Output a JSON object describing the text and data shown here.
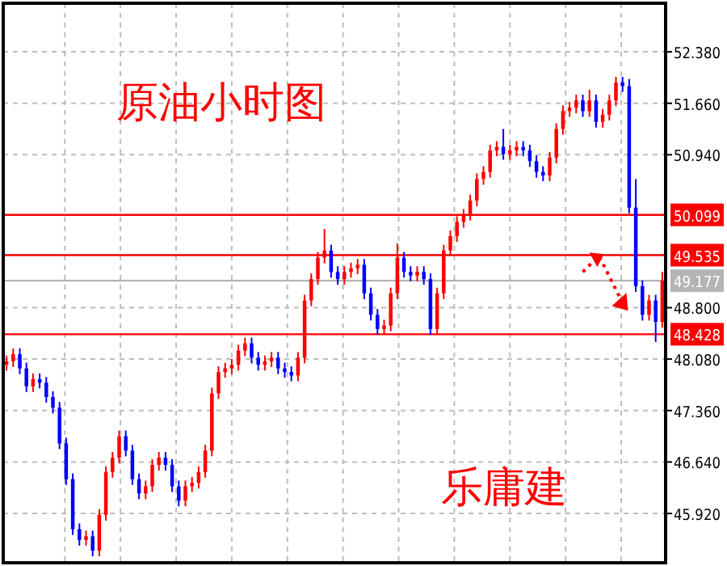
{
  "chart_data": {
    "type": "candlestick",
    "title": "原油小时图",
    "annotations": [
      "乐庸建"
    ],
    "categories": [
      null,
      null,
      null,
      null,
      null,
      null,
      null,
      null,
      null,
      null,
      null,
      null,
      null,
      null,
      null,
      null,
      null,
      null,
      null,
      null,
      null,
      null,
      null,
      null,
      null,
      null,
      null,
      null,
      null,
      null,
      null,
      null,
      null,
      null,
      null,
      null,
      null,
      null,
      null,
      null,
      null,
      null,
      null,
      null,
      null,
      null,
      null,
      null,
      null,
      null,
      null,
      null,
      null,
      null,
      null,
      null,
      null,
      null,
      null,
      null,
      null,
      null,
      null,
      null,
      null,
      null,
      null,
      null,
      null,
      null,
      null,
      null,
      null,
      null,
      null,
      null,
      null,
      null,
      null,
      null,
      null,
      null,
      null,
      null,
      null,
      null,
      null,
      null,
      null,
      null,
      null,
      null,
      null,
      null,
      null,
      null,
      null,
      null,
      null,
      null
    ],
    "ohlc": [
      [
        48.0,
        48.13,
        47.92,
        48.05
      ],
      [
        48.05,
        48.23,
        47.97,
        48.15
      ],
      [
        48.15,
        48.23,
        47.87,
        47.95
      ],
      [
        47.95,
        48.03,
        47.62,
        47.7
      ],
      [
        47.7,
        47.88,
        47.62,
        47.8
      ],
      [
        47.8,
        47.88,
        47.67,
        47.75
      ],
      [
        47.75,
        47.83,
        47.47,
        47.55
      ],
      [
        47.55,
        47.63,
        47.32,
        47.4
      ],
      [
        47.4,
        47.48,
        46.82,
        46.9
      ],
      [
        46.9,
        46.98,
        46.32,
        46.4
      ],
      [
        46.4,
        46.48,
        45.62,
        45.7
      ],
      [
        45.7,
        45.78,
        45.47,
        45.55
      ],
      [
        45.55,
        45.68,
        45.47,
        45.6
      ],
      [
        45.6,
        45.68,
        45.32,
        45.4
      ],
      [
        45.4,
        45.98,
        45.32,
        45.9
      ],
      [
        45.9,
        46.58,
        45.82,
        46.5
      ],
      [
        46.5,
        46.78,
        46.42,
        46.7
      ],
      [
        46.7,
        47.08,
        46.62,
        47.0
      ],
      [
        47.0,
        47.08,
        46.72,
        46.8
      ],
      [
        46.8,
        46.88,
        46.32,
        46.4
      ],
      [
        46.4,
        46.48,
        46.12,
        46.2
      ],
      [
        46.2,
        46.38,
        46.12,
        46.3
      ],
      [
        46.3,
        46.68,
        46.22,
        46.6
      ],
      [
        46.6,
        46.78,
        46.52,
        46.7
      ],
      [
        46.7,
        46.78,
        46.52,
        46.6
      ],
      [
        46.6,
        46.68,
        46.22,
        46.3
      ],
      [
        46.3,
        46.38,
        46.02,
        46.1
      ],
      [
        46.1,
        46.38,
        46.02,
        46.3
      ],
      [
        46.3,
        46.43,
        46.22,
        46.35
      ],
      [
        46.35,
        46.58,
        46.27,
        46.5
      ],
      [
        46.5,
        46.88,
        46.42,
        46.8
      ],
      [
        46.8,
        47.68,
        46.72,
        47.6
      ],
      [
        47.6,
        47.98,
        47.52,
        47.9
      ],
      [
        47.9,
        48.03,
        47.82,
        47.95
      ],
      [
        47.95,
        48.08,
        47.87,
        48.0
      ],
      [
        48.0,
        48.28,
        47.92,
        48.2
      ],
      [
        48.2,
        48.38,
        48.12,
        48.3
      ],
      [
        48.3,
        48.38,
        48.02,
        48.1
      ],
      [
        48.1,
        48.18,
        47.92,
        48.0
      ],
      [
        48.0,
        48.13,
        47.92,
        48.05
      ],
      [
        48.05,
        48.18,
        47.97,
        48.1
      ],
      [
        48.1,
        48.18,
        47.87,
        47.95
      ],
      [
        47.95,
        48.03,
        47.82,
        47.9
      ],
      [
        47.9,
        47.98,
        47.77,
        47.85
      ],
      [
        47.85,
        48.18,
        47.77,
        48.1
      ],
      [
        48.1,
        48.98,
        48.02,
        48.9
      ],
      [
        48.9,
        49.28,
        48.82,
        49.2
      ],
      [
        49.2,
        49.58,
        49.12,
        49.5
      ],
      [
        49.5,
        49.9,
        49.42,
        49.6
      ],
      [
        49.6,
        49.68,
        49.22,
        49.3
      ],
      [
        49.3,
        49.38,
        49.12,
        49.2
      ],
      [
        49.2,
        49.38,
        49.12,
        49.3
      ],
      [
        49.3,
        49.43,
        49.22,
        49.35
      ],
      [
        49.35,
        49.48,
        49.27,
        49.4
      ],
      [
        49.4,
        49.48,
        48.92,
        49.0
      ],
      [
        49.0,
        49.08,
        48.62,
        48.7
      ],
      [
        48.7,
        48.78,
        48.42,
        48.5
      ],
      [
        48.5,
        48.63,
        48.42,
        48.55
      ],
      [
        48.55,
        49.08,
        48.47,
        49.0
      ],
      [
        49.0,
        49.7,
        48.92,
        49.5
      ],
      [
        49.5,
        49.58,
        49.22,
        49.3
      ],
      [
        49.3,
        49.38,
        49.17,
        49.25
      ],
      [
        49.25,
        49.38,
        49.17,
        49.3
      ],
      [
        49.3,
        49.38,
        49.12,
        49.2
      ],
      [
        49.2,
        49.28,
        48.42,
        48.5
      ],
      [
        48.5,
        49.08,
        48.42,
        49.0
      ],
      [
        49.0,
        49.68,
        48.92,
        49.6
      ],
      [
        49.6,
        49.88,
        49.52,
        49.8
      ],
      [
        49.8,
        50.08,
        49.72,
        50.0
      ],
      [
        50.0,
        50.18,
        49.92,
        50.1
      ],
      [
        50.1,
        50.38,
        50.02,
        50.3
      ],
      [
        50.3,
        50.68,
        50.22,
        50.6
      ],
      [
        50.6,
        50.78,
        50.52,
        50.7
      ],
      [
        50.7,
        51.08,
        50.62,
        51.0
      ],
      [
        51.0,
        51.13,
        50.92,
        51.05
      ],
      [
        51.05,
        51.3,
        50.87,
        50.95
      ],
      [
        50.95,
        51.08,
        50.87,
        51.0
      ],
      [
        51.0,
        51.13,
        50.92,
        51.05
      ],
      [
        51.05,
        51.13,
        50.92,
        51.0
      ],
      [
        51.0,
        51.08,
        50.77,
        50.85
      ],
      [
        50.85,
        50.93,
        50.62,
        50.7
      ],
      [
        50.7,
        50.78,
        50.57,
        50.65
      ],
      [
        50.65,
        50.98,
        50.57,
        50.9
      ],
      [
        50.9,
        51.38,
        50.82,
        51.3
      ],
      [
        51.3,
        51.63,
        51.22,
        51.55
      ],
      [
        51.55,
        51.68,
        51.47,
        51.6
      ],
      [
        51.6,
        51.78,
        51.52,
        51.7
      ],
      [
        51.7,
        51.78,
        51.47,
        51.55
      ],
      [
        51.55,
        51.85,
        51.47,
        51.7
      ],
      [
        51.7,
        51.78,
        51.32,
        51.4
      ],
      [
        51.4,
        51.58,
        51.32,
        51.5
      ],
      [
        51.5,
        51.78,
        51.42,
        51.7
      ],
      [
        51.7,
        52.03,
        51.62,
        51.95
      ],
      [
        51.95,
        52.03,
        51.82,
        51.9
      ],
      [
        51.9,
        52.0,
        50.12,
        50.2
      ],
      [
        50.2,
        50.6,
        49.02,
        49.1
      ],
      [
        49.1,
        49.18,
        48.62,
        48.7
      ],
      [
        48.7,
        48.98,
        48.62,
        48.9
      ],
      [
        48.9,
        48.98,
        48.32,
        48.6
      ],
      [
        48.6,
        49.3,
        48.52,
        49.177
      ]
    ],
    "colors": [
      "#ff0000",
      "#ff0000",
      "#0000ff",
      "#0000ff",
      "#ff0000",
      "#0000ff",
      "#0000ff",
      "#0000ff",
      "#0000ff",
      "#0000ff",
      "#0000ff",
      "#0000ff",
      "#ff0000",
      "#0000ff",
      "#ff0000",
      "#ff0000",
      "#ff0000",
      "#ff0000",
      "#0000ff",
      "#0000ff",
      "#0000ff",
      "#ff0000",
      "#ff0000",
      "#ff0000",
      "#0000ff",
      "#0000ff",
      "#0000ff",
      "#ff0000",
      "#ff0000",
      "#ff0000",
      "#ff0000",
      "#ff0000",
      "#ff0000",
      "#ff0000",
      "#ff0000",
      "#ff0000",
      "#ff0000",
      "#0000ff",
      "#0000ff",
      "#ff0000",
      "#ff0000",
      "#0000ff",
      "#0000ff",
      "#0000ff",
      "#ff0000",
      "#ff0000",
      "#ff0000",
      "#ff0000",
      "#ff0000",
      "#0000ff",
      "#0000ff",
      "#ff0000",
      "#ff0000",
      "#ff0000",
      "#0000ff",
      "#0000ff",
      "#0000ff",
      "#ff0000",
      "#ff0000",
      "#ff0000",
      "#0000ff",
      "#0000ff",
      "#ff0000",
      "#0000ff",
      "#0000ff",
      "#ff0000",
      "#ff0000",
      "#ff0000",
      "#ff0000",
      "#ff0000",
      "#ff0000",
      "#ff0000",
      "#ff0000",
      "#ff0000",
      "#ff0000",
      "#0000ff",
      "#ff0000",
      "#ff0000",
      "#0000ff",
      "#0000ff",
      "#0000ff",
      "#0000ff",
      "#ff0000",
      "#ff0000",
      "#ff0000",
      "#ff0000",
      "#ff0000",
      "#0000ff",
      "#ff0000",
      "#0000ff",
      "#ff0000",
      "#ff0000",
      "#ff0000",
      "#0000ff",
      "#0000ff",
      "#0000ff",
      "#0000ff",
      "#ff0000",
      "#0000ff",
      "#ff0000"
    ],
    "ylim": [
      45.23,
      53.06
    ],
    "yticks": [
      {
        "value": 45.92,
        "label": "45.920"
      },
      {
        "value": 46.64,
        "label": "46.640"
      },
      {
        "value": 47.36,
        "label": "47.360"
      },
      {
        "value": 48.08,
        "label": "48.080"
      },
      {
        "value": 48.8,
        "label": "48.800"
      },
      {
        "value": 50.94,
        "label": "50.940"
      },
      {
        "value": 51.66,
        "label": "51.660"
      },
      {
        "value": 52.38,
        "label": "52.380"
      }
    ],
    "tick_labels": "y",
    "grid": true,
    "ref_lines": [
      {
        "axis": "y",
        "value": 50.099,
        "label": "50.099",
        "color": "#ff0000"
      },
      {
        "axis": "y",
        "value": 49.535,
        "label": "49.535",
        "color": "#ff0000"
      },
      {
        "axis": "y",
        "value": 49.177,
        "label": "49.177",
        "color": "#b4b4b4"
      },
      {
        "axis": "y",
        "value": 48.428,
        "label": "48.428",
        "color": "#ff0000"
      }
    ]
  }
}
